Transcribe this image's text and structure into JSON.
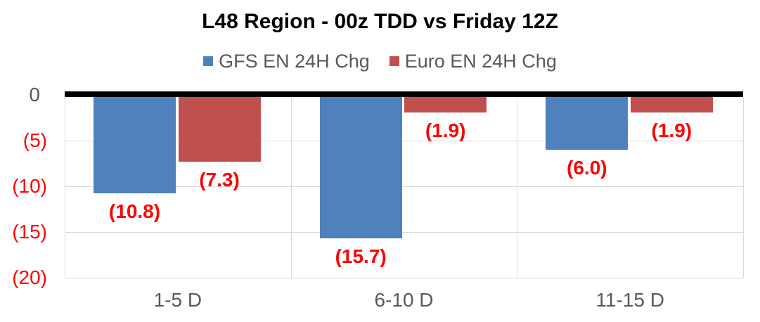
{
  "chart_data": {
    "type": "bar",
    "title": "L48 Region - 00z TDD vs Friday 12Z",
    "categories": [
      "1-5 D",
      "6-10 D",
      "11-15 D"
    ],
    "series": [
      {
        "name": "GFS EN 24H Chg",
        "color": "#4F81BD",
        "values": [
          -10.8,
          -15.7,
          -6.0
        ],
        "labels": [
          "(10.8)",
          "(15.7)",
          "(6.0)"
        ]
      },
      {
        "name": "Euro EN 24H Chg",
        "color": "#C0504D",
        "values": [
          -7.3,
          -1.9,
          -1.9
        ],
        "labels": [
          "(7.3)",
          "(1.9)",
          "(1.9)"
        ]
      }
    ],
    "y_axis": {
      "range": [
        -20,
        0
      ],
      "ticks": [
        {
          "label": "0",
          "value": 0,
          "color": "#595959"
        },
        {
          "label": "(5)",
          "value": -5,
          "color": "#FF0000"
        },
        {
          "label": "(10)",
          "value": -10,
          "color": "#FF0000"
        },
        {
          "label": "(15)",
          "value": -15,
          "color": "#FF0000"
        },
        {
          "label": "(20)",
          "value": -20,
          "color": "#FF0000"
        }
      ]
    },
    "x_axis": {
      "label_color": "#595959"
    },
    "data_label_color": "#FF0000",
    "gridline_color": "#D9D9D9",
    "zero_line_color": "#000000",
    "legend_position": "top",
    "grid": true
  }
}
